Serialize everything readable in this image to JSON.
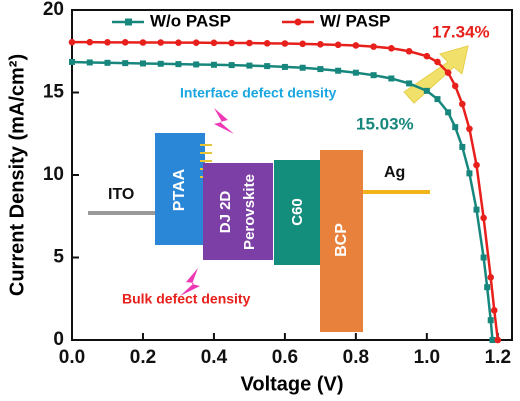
{
  "chart_data": {
    "type": "line",
    "x_label": "Voltage (V)",
    "y_label": "Current Density (mA/cm²)",
    "xlim": [
      0,
      1.24
    ],
    "ylim": [
      0,
      20
    ],
    "xticks": [
      {
        "value": 0,
        "label": "0.0"
      },
      0.2,
      0.4,
      0.6,
      0.8,
      {
        "value": 1,
        "label": "1.0"
      },
      1.2
    ],
    "yticks": [
      0,
      5,
      10,
      15,
      20
    ],
    "legend": "top",
    "series": [
      {
        "name": "W/o PASP",
        "color": "#17877d",
        "marker": "square",
        "x": [
          0,
          0.05,
          0.1,
          0.15,
          0.2,
          0.25,
          0.3,
          0.35,
          0.4,
          0.45,
          0.5,
          0.55,
          0.6,
          0.65,
          0.7,
          0.75,
          0.8,
          0.85,
          0.9,
          0.95,
          1.0,
          1.03,
          1.06,
          1.08,
          1.1,
          1.12,
          1.14,
          1.16,
          1.17,
          1.18,
          1.185
        ],
        "values": [
          16.85,
          16.82,
          16.8,
          16.78,
          16.76,
          16.74,
          16.72,
          16.7,
          16.68,
          16.66,
          16.63,
          16.6,
          16.55,
          16.5,
          16.42,
          16.32,
          16.2,
          16.05,
          15.85,
          15.55,
          15.1,
          14.6,
          13.8,
          12.9,
          11.7,
          10.1,
          7.9,
          5.0,
          3.2,
          1.2,
          0
        ]
      },
      {
        "name": "W/ PASP",
        "color": "#e8201c",
        "marker": "circle",
        "x": [
          0,
          0.05,
          0.1,
          0.15,
          0.2,
          0.25,
          0.3,
          0.35,
          0.4,
          0.45,
          0.5,
          0.55,
          0.6,
          0.65,
          0.7,
          0.75,
          0.8,
          0.85,
          0.9,
          0.95,
          1.0,
          1.03,
          1.06,
          1.08,
          1.1,
          1.12,
          1.14,
          1.16,
          1.18,
          1.19,
          1.2
        ],
        "values": [
          18.05,
          18.05,
          18.04,
          18.04,
          18.03,
          18.03,
          18.02,
          18.02,
          18.01,
          18.0,
          18.0,
          17.98,
          17.97,
          17.95,
          17.92,
          17.89,
          17.85,
          17.78,
          17.68,
          17.5,
          17.2,
          16.85,
          16.2,
          15.4,
          14.3,
          12.8,
          10.6,
          7.4,
          3.8,
          1.8,
          0
        ]
      }
    ],
    "annotations": [
      "15.03%",
      "17.34%"
    ],
    "inset": {
      "layers": [
        "ITO",
        "PTAA",
        "DJ 2D",
        "Perovskite",
        "C60",
        "BCP",
        "Ag"
      ],
      "labels": [
        "Interface defect density",
        "Bulk defect density"
      ]
    }
  }
}
